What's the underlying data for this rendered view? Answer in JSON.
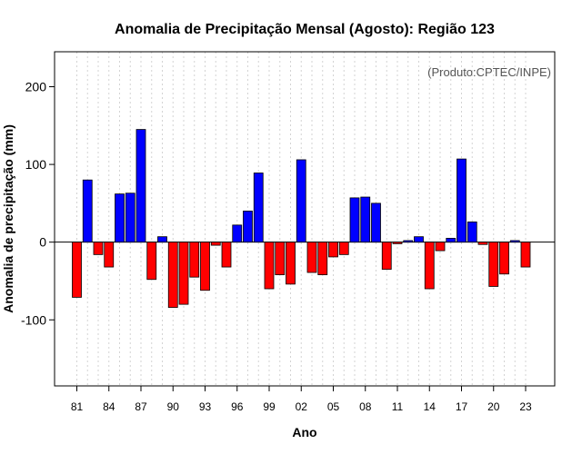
{
  "chart_data": {
    "type": "bar",
    "title": "Anomalia de Precipitação Mensal (Agosto): Região 123",
    "xlabel": "Ano",
    "ylabel": "Anomalia de precipitação (mm)",
    "credit": "(Produto:CPTEC/INPE)",
    "ylim": [
      -185,
      245
    ],
    "yticks": [
      -100,
      0,
      100,
      200
    ],
    "ytick_labels": [
      "-100",
      "0",
      "100",
      "200"
    ],
    "xticks": [
      "81",
      "84",
      "87",
      "90",
      "93",
      "96",
      "99",
      "02",
      "05",
      "08",
      "11",
      "14",
      "17",
      "20",
      "23"
    ],
    "grid": "vertical dotted",
    "positive_color": "#0000ff",
    "negative_color": "#ff0000",
    "categories": [
      "1981",
      "1982",
      "1983",
      "1984",
      "1985",
      "1986",
      "1987",
      "1988",
      "1989",
      "1990",
      "1991",
      "1992",
      "1993",
      "1994",
      "1995",
      "1996",
      "1997",
      "1998",
      "1999",
      "2000",
      "2001",
      "2002",
      "2003",
      "2004",
      "2005",
      "2006",
      "2007",
      "2008",
      "2009",
      "2010",
      "2011",
      "2012",
      "2013",
      "2014",
      "2015",
      "2016",
      "2017",
      "2018",
      "2019",
      "2020",
      "2021",
      "2022",
      "2023"
    ],
    "values": [
      -71,
      80,
      -16,
      -32,
      62,
      63,
      145,
      -48,
      7,
      -84,
      -80,
      -45,
      -62,
      -4,
      -32,
      22,
      40,
      89,
      -60,
      -42,
      -54,
      106,
      -39,
      -42,
      -19,
      -16,
      57,
      58,
      50,
      -35,
      -2,
      2,
      7,
      -60,
      -11,
      5,
      107,
      26,
      -3,
      -57,
      -41,
      2,
      -32
    ]
  }
}
